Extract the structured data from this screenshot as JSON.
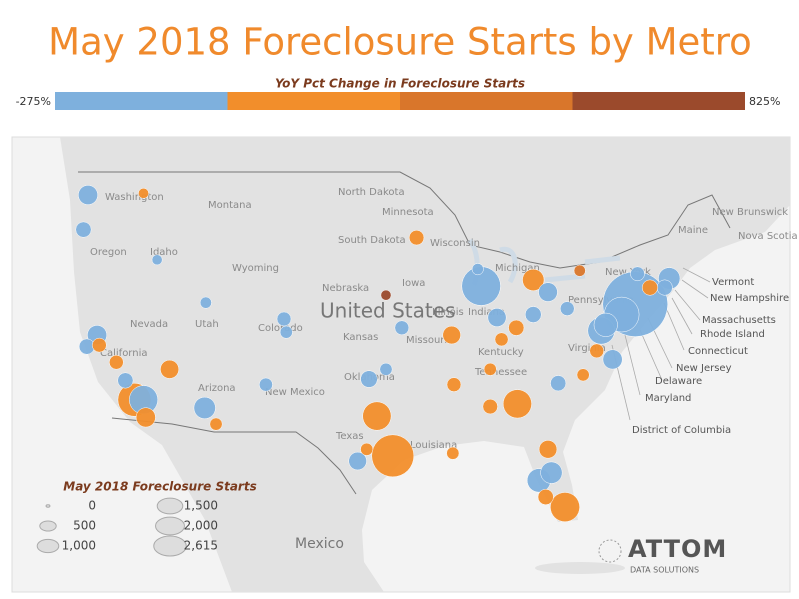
{
  "title": "May 2018 Foreclosure Starts by Metro",
  "color_legend": {
    "title": "YoY Pct Change in Foreclosure Starts",
    "range": [
      {
        "value": -275,
        "label": "-275%"
      },
      {
        "value": 825,
        "label": "825%"
      }
    ],
    "breaks": [
      0,
      275,
      550
    ],
    "colors": [
      "#7eb0dd",
      "#f28e2b",
      "#d9762b",
      "#9b4a2c"
    ]
  },
  "map_labels": [
    "Washington",
    "Oregon",
    "Idaho",
    "Montana",
    "Wyoming",
    "Nevada",
    "Utah",
    "Colorado",
    "Arizona",
    "New Mexico",
    "California",
    "North Dakota",
    "South Dakota",
    "Nebraska",
    "Kansas",
    "Oklahoma",
    "Texas",
    "Minnesota",
    "Iowa",
    "Missouri",
    "Wisconsin",
    "Michigan",
    "Illinois",
    "Indiana",
    "Kentucky",
    "Tennessee",
    "Louisiana",
    "Pennsylvania",
    "New York",
    "Virginia",
    "Maine",
    "New Brunswick",
    "Nova Scotia",
    "United States",
    "Mexico"
  ],
  "callout_labels": [
    "Vermont",
    "New Hampshire",
    "Massachusetts",
    "Rhode Island",
    "Connecticut",
    "New Jersey",
    "Delaware",
    "Maryland",
    "District of Columbia"
  ],
  "metros": [
    {
      "lon": -74.0,
      "lat": 40.7,
      "starts": 2615,
      "change": -20
    },
    {
      "lon": -95.4,
      "lat": 29.8,
      "starts": 1000,
      "change": 50
    },
    {
      "lon": -87.6,
      "lat": 41.9,
      "starts": 830,
      "change": -25
    },
    {
      "lon": -75.2,
      "lat": 40.0,
      "starts": 650,
      "change": -25
    },
    {
      "lon": -118.2,
      "lat": 34.0,
      "starts": 575,
      "change": 40
    },
    {
      "lon": -80.2,
      "lat": 25.8,
      "starts": 430,
      "change": 40
    },
    {
      "lon": -96.8,
      "lat": 32.8,
      "starts": 400,
      "change": 60
    },
    {
      "lon": -84.4,
      "lat": 33.7,
      "starts": 400,
      "change": 40
    },
    {
      "lon": -117.4,
      "lat": 34.0,
      "starts": 400,
      "change": -15
    },
    {
      "lon": -77.0,
      "lat": 38.9,
      "starts": 350,
      "change": -30
    },
    {
      "lon": -82.5,
      "lat": 27.9,
      "starts": 250,
      "change": -20
    },
    {
      "lon": -76.6,
      "lat": 39.3,
      "starts": 250,
      "change": -30
    },
    {
      "lon": -112.0,
      "lat": 33.4,
      "starts": 200,
      "change": -20
    },
    {
      "lon": -83.0,
      "lat": 42.3,
      "starts": 200,
      "change": 40
    },
    {
      "lon": -81.4,
      "lat": 28.5,
      "starts": 200,
      "change": -30
    },
    {
      "lon": -71.0,
      "lat": 42.4,
      "starts": 200,
      "change": -30
    },
    {
      "lon": -122.3,
      "lat": 47.6,
      "starts": 150,
      "change": -30
    },
    {
      "lon": -121.5,
      "lat": 38.6,
      "starts": 150,
      "change": -30
    },
    {
      "lon": -117.2,
      "lat": 32.7,
      "starts": 150,
      "change": 20
    },
    {
      "lon": -76.0,
      "lat": 36.9,
      "starts": 150,
      "change": -30
    },
    {
      "lon": -81.7,
      "lat": 41.5,
      "starts": 140,
      "change": -30
    },
    {
      "lon": -115.1,
      "lat": 36.2,
      "starts": 130,
      "change": 30
    },
    {
      "lon": -86.2,
      "lat": 39.8,
      "starts": 130,
      "change": -30
    },
    {
      "lon": -98.5,
      "lat": 29.4,
      "starts": 120,
      "change": -20
    },
    {
      "lon": -90.2,
      "lat": 38.6,
      "starts": 120,
      "change": 30
    },
    {
      "lon": -81.7,
      "lat": 30.3,
      "starts": 120,
      "change": 30
    },
    {
      "lon": -97.5,
      "lat": 35.5,
      "starts": 100,
      "change": -30
    },
    {
      "lon": -83.0,
      "lat": 40.0,
      "starts": 90,
      "change": -35
    },
    {
      "lon": -122.7,
      "lat": 45.5,
      "starts": 80,
      "change": -20
    },
    {
      "lon": -122.4,
      "lat": 37.8,
      "starts": 80,
      "change": -40
    },
    {
      "lon": -119.0,
      "lat": 35.4,
      "starts": 80,
      "change": -20
    },
    {
      "lon": -84.5,
      "lat": 39.1,
      "starts": 80,
      "change": 30
    },
    {
      "lon": -80.8,
      "lat": 35.2,
      "starts": 80,
      "change": -20
    },
    {
      "lon": -71.4,
      "lat": 41.8,
      "starts": 80,
      "change": -25
    },
    {
      "lon": -72.7,
      "lat": 41.8,
      "starts": 80,
      "change": 30
    },
    {
      "lon": -81.9,
      "lat": 26.6,
      "starts": 80,
      "change": 20
    },
    {
      "lon": -93.3,
      "lat": 45.0,
      "starts": 70,
      "change": 40
    },
    {
      "lon": -86.8,
      "lat": 33.5,
      "starts": 70,
      "change": 40
    },
    {
      "lon": -121.3,
      "lat": 37.9,
      "starts": 60,
      "change": 40
    },
    {
      "lon": -119.8,
      "lat": 36.7,
      "starts": 60,
      "change": 30
    },
    {
      "lon": -105.0,
      "lat": 39.7,
      "starts": 60,
      "change": -30
    },
    {
      "lon": -94.6,
      "lat": 39.1,
      "starts": 60,
      "change": -40
    },
    {
      "lon": -80.0,
      "lat": 40.4,
      "starts": 60,
      "change": -30
    },
    {
      "lon": -90.0,
      "lat": 35.1,
      "starts": 60,
      "change": 40
    },
    {
      "lon": -77.4,
      "lat": 37.5,
      "starts": 60,
      "change": 20
    },
    {
      "lon": -73.8,
      "lat": 42.7,
      "starts": 60,
      "change": -30
    },
    {
      "lon": -106.6,
      "lat": 35.1,
      "starts": 50,
      "change": -30
    },
    {
      "lon": -85.8,
      "lat": 38.3,
      "starts": 50,
      "change": 30
    },
    {
      "lon": -111.0,
      "lat": 32.2,
      "starts": 40,
      "change": 20
    },
    {
      "lon": -104.8,
      "lat": 38.8,
      "starts": 40,
      "change": -25
    },
    {
      "lon": -97.7,
      "lat": 30.3,
      "starts": 40,
      "change": 30
    },
    {
      "lon": -96.0,
      "lat": 36.2,
      "starts": 40,
      "change": -20
    },
    {
      "lon": -86.8,
      "lat": 36.2,
      "starts": 40,
      "change": 20
    },
    {
      "lon": -90.1,
      "lat": 30.0,
      "starts": 40,
      "change": 20
    },
    {
      "lon": -78.6,
      "lat": 35.8,
      "starts": 40,
      "change": 30
    },
    {
      "lon": -111.9,
      "lat": 40.8,
      "starts": 30,
      "change": -20
    },
    {
      "lon": -87.9,
      "lat": 43.0,
      "starts": 30,
      "change": -20
    },
    {
      "lon": -78.9,
      "lat": 42.9,
      "starts": 30,
      "change": 500
    },
    {
      "lon": -117.4,
      "lat": 47.7,
      "starts": 20,
      "change": 50
    },
    {
      "lon": -116.2,
      "lat": 43.6,
      "starts": 20,
      "change": -10
    },
    {
      "lon": -96.0,
      "lat": 41.3,
      "starts": 20,
      "change": 600
    }
  ],
  "size_legend": {
    "title": "May 2018 Foreclosure Starts",
    "sizes": [
      0,
      500,
      {
        "value": 1000,
        "label": "1,000"
      },
      {
        "value": 1500,
        "label": "1,500"
      },
      {
        "value": 2000,
        "label": "2,000"
      },
      {
        "value": 2615,
        "label": "2,615"
      }
    ]
  },
  "logo": {
    "name": "ATTOM",
    "tagline": "DATA SOLUTIONS"
  }
}
